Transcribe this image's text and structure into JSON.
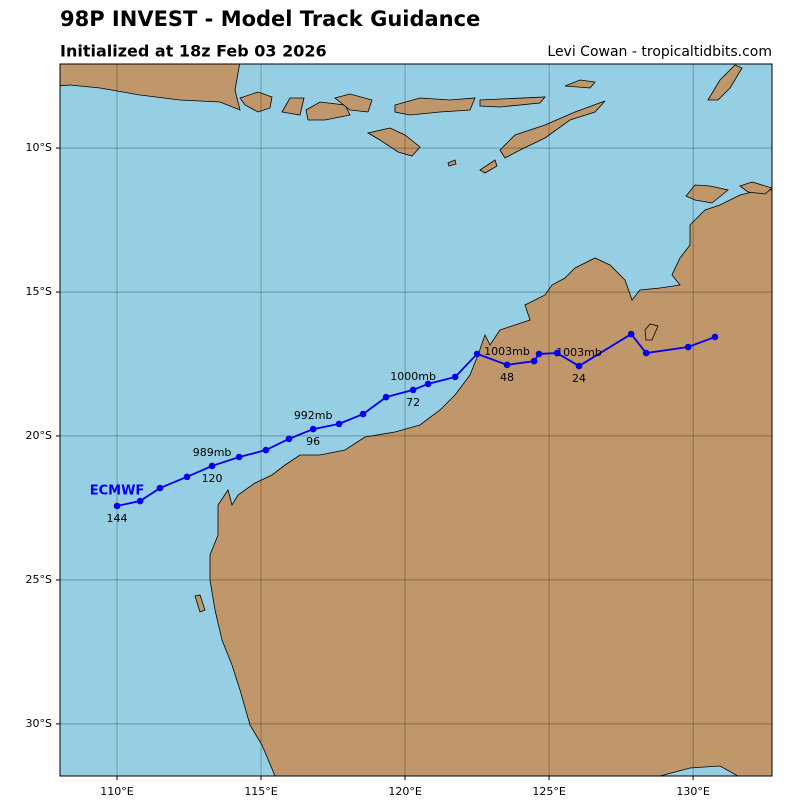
{
  "chart_data": {
    "type": "track",
    "title": "98P INVEST - Model Track Guidance",
    "subtitle": "Initialized at 18z Feb 03 2026",
    "credit": "Levi Cowan - tropicaltidbits.com",
    "xlim": [
      108.02,
      132.74
    ],
    "ylim": [
      -31.81,
      -7.08
    ],
    "xticks": [
      {
        "value": 110,
        "label": "110°E"
      },
      {
        "value": 115,
        "label": "115°E"
      },
      {
        "value": 120,
        "label": "120°E"
      },
      {
        "value": 125,
        "label": "125°E"
      },
      {
        "value": 130,
        "label": "130°E"
      }
    ],
    "yticks": [
      {
        "value": -10,
        "label": "10°S"
      },
      {
        "value": -15,
        "label": "15°S"
      },
      {
        "value": -20,
        "label": "20°S"
      },
      {
        "value": -25,
        "label": "25°S"
      },
      {
        "value": -30,
        "label": "30°S"
      }
    ],
    "grid": true,
    "series": [
      {
        "name": "ECMWF",
        "color": "#0000ee",
        "x": [
          130.76,
          129.83,
          128.37,
          127.85,
          126.04,
          125.28,
          124.65,
          124.48,
          123.54,
          122.5,
          121.74,
          120.8,
          120.28,
          119.34,
          118.54,
          117.71,
          116.81,
          115.97,
          115.17,
          114.24,
          113.3,
          112.43,
          111.49,
          110.8,
          110.0
        ],
        "values": [
          -16.56,
          -16.91,
          -17.12,
          -16.46,
          -17.57,
          -17.12,
          -17.15,
          -17.4,
          -17.53,
          -17.15,
          -17.95,
          -18.19,
          -18.4,
          -18.65,
          -19.24,
          -19.58,
          -19.76,
          -20.1,
          -20.49,
          -20.73,
          -21.04,
          -21.42,
          -21.81,
          -22.26,
          -22.43
        ],
        "hour_labels": [
          null,
          null,
          null,
          null,
          "24",
          null,
          null,
          null,
          "48",
          null,
          null,
          null,
          "72",
          null,
          null,
          null,
          "96",
          null,
          null,
          null,
          "120",
          null,
          null,
          null,
          "144"
        ],
        "pressure_labels": [
          null,
          null,
          null,
          null,
          "1003mb",
          null,
          null,
          null,
          "1003mb",
          null,
          null,
          null,
          "1000mb",
          null,
          null,
          null,
          "992mb",
          null,
          null,
          null,
          "989mb",
          null,
          null,
          null,
          null
        ]
      }
    ]
  }
}
